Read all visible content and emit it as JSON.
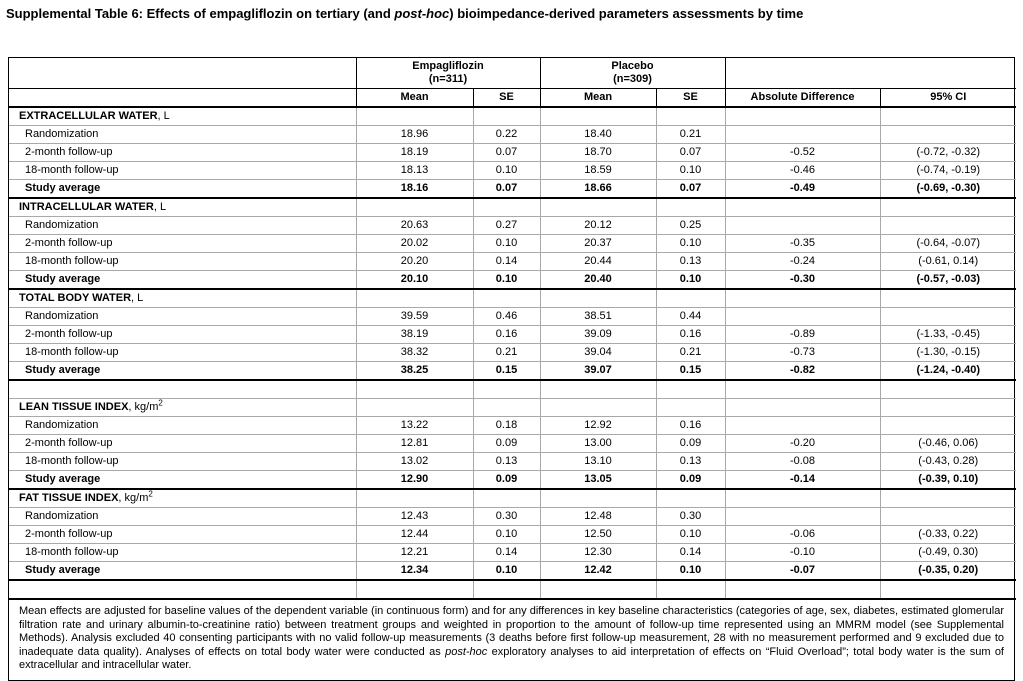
{
  "title": {
    "part1": "Supplemental Table 6: Effects of empagliflozin on tertiary (and ",
    "italic": "post-hoc",
    "part2": ") bioimpedance-derived parameters assessments by time"
  },
  "table": {
    "groups": [
      {
        "name": "Empagliflozin",
        "n": "(n=311)"
      },
      {
        "name": "Placebo",
        "n": "(n=309)"
      }
    ],
    "col_headers": [
      "Mean",
      "SE",
      "Mean",
      "SE",
      "Absolute Difference",
      "95% CI"
    ],
    "sections": [
      {
        "name": "EXTRACELLULAR WATER",
        "unit": ", L",
        "sup": "",
        "rows": [
          {
            "label": "Randomization",
            "m1": "18.96",
            "s1": "0.22",
            "m2": "18.40",
            "s2": "0.21",
            "d": "",
            "ci": ""
          },
          {
            "label": "2-month follow-up",
            "m1": "18.19",
            "s1": "0.07",
            "m2": "18.70",
            "s2": "0.07",
            "d": "-0.52",
            "ci": "(-0.72, -0.32)"
          },
          {
            "label": "18-month follow-up",
            "m1": "18.13",
            "s1": "0.10",
            "m2": "18.59",
            "s2": "0.10",
            "d": "-0.46",
            "ci": "(-0.74, -0.19)"
          },
          {
            "label": "Study average",
            "m1": "18.16",
            "s1": "0.07",
            "m2": "18.66",
            "s2": "0.07",
            "d": "-0.49",
            "ci": "(-0.69, -0.30)"
          }
        ]
      },
      {
        "name": "INTRACELLULAR WATER",
        "unit": ", L",
        "sup": "",
        "rows": [
          {
            "label": "Randomization",
            "m1": "20.63",
            "s1": "0.27",
            "m2": "20.12",
            "s2": "0.25",
            "d": "",
            "ci": ""
          },
          {
            "label": "2-month follow-up",
            "m1": "20.02",
            "s1": "0.10",
            "m2": "20.37",
            "s2": "0.10",
            "d": "-0.35",
            "ci": "(-0.64, -0.07)"
          },
          {
            "label": "18-month follow-up",
            "m1": "20.20",
            "s1": "0.14",
            "m2": "20.44",
            "s2": "0.13",
            "d": "-0.24",
            "ci": "(-0.61, 0.14)"
          },
          {
            "label": "Study average",
            "m1": "20.10",
            "s1": "0.10",
            "m2": "20.40",
            "s2": "0.10",
            "d": "-0.30",
            "ci": "(-0.57, -0.03)"
          }
        ]
      },
      {
        "name": "TOTAL BODY WATER",
        "unit": ", L",
        "sup": "",
        "rows": [
          {
            "label": "Randomization",
            "m1": "39.59",
            "s1": "0.46",
            "m2": "38.51",
            "s2": "0.44",
            "d": "",
            "ci": ""
          },
          {
            "label": "2-month follow-up",
            "m1": "38.19",
            "s1": "0.16",
            "m2": "39.09",
            "s2": "0.16",
            "d": "-0.89",
            "ci": "(-1.33, -0.45)"
          },
          {
            "label": "18-month follow-up",
            "m1": "38.32",
            "s1": "0.21",
            "m2": "39.04",
            "s2": "0.21",
            "d": "-0.73",
            "ci": "(-1.30, -0.15)"
          },
          {
            "label": "Study average",
            "m1": "38.25",
            "s1": "0.15",
            "m2": "39.07",
            "s2": "0.15",
            "d": "-0.82",
            "ci": "(-1.24, -0.40)"
          }
        ]
      },
      {
        "name": "LEAN TISSUE INDEX",
        "unit": ", kg/m",
        "sup": "2",
        "rows": [
          {
            "label": "Randomization",
            "m1": "13.22",
            "s1": "0.18",
            "m2": "12.92",
            "s2": "0.16",
            "d": "",
            "ci": ""
          },
          {
            "label": "2-month follow-up",
            "m1": "12.81",
            "s1": "0.09",
            "m2": "13.00",
            "s2": "0.09",
            "d": "-0.20",
            "ci": "(-0.46, 0.06)"
          },
          {
            "label": "18-month follow-up",
            "m1": "13.02",
            "s1": "0.13",
            "m2": "13.10",
            "s2": "0.13",
            "d": "-0.08",
            "ci": "(-0.43, 0.28)"
          },
          {
            "label": "Study average",
            "m1": "12.90",
            "s1": "0.09",
            "m2": "13.05",
            "s2": "0.09",
            "d": "-0.14",
            "ci": "(-0.39, 0.10)"
          }
        ]
      },
      {
        "name": "FAT TISSUE INDEX",
        "unit": ", kg/m",
        "sup": "2",
        "rows": [
          {
            "label": "Randomization",
            "m1": "12.43",
            "s1": "0.30",
            "m2": "12.48",
            "s2": "0.30",
            "d": "",
            "ci": ""
          },
          {
            "label": "2-month follow-up",
            "m1": "12.44",
            "s1": "0.10",
            "m2": "12.50",
            "s2": "0.10",
            "d": "-0.06",
            "ci": "(-0.33, 0.22)"
          },
          {
            "label": "18-month follow-up",
            "m1": "12.21",
            "s1": "0.14",
            "m2": "12.30",
            "s2": "0.14",
            "d": "-0.10",
            "ci": "(-0.49, 0.30)"
          },
          {
            "label": "Study average",
            "m1": "12.34",
            "s1": "0.10",
            "m2": "12.42",
            "s2": "0.10",
            "d": "-0.07",
            "ci": "(-0.35, 0.20)"
          }
        ]
      }
    ]
  },
  "footnote": {
    "part1": "Mean effects are adjusted for baseline values of the dependent variable (in continuous form) and for any differences in key baseline characteristics (categories of age, sex, diabetes, estimated glomerular filtration rate and urinary albumin-to-creatinine ratio) between treatment groups and weighted in proportion to the amount of follow-up time represented using an MMRM model (see Supplemental Methods). Analysis excluded 40 consenting participants with no valid follow-up measurements (3 deaths before first follow-up measurement, 28 with no measurement performed and 9 excluded due to inadequate data quality). Analyses of effects on total body water were conducted as ",
    "italic": "post-hoc",
    "part2": " exploratory analyses to aid interpretation of effects on “Fluid Overload”; total body water is the sum of extracellular and intracellular water."
  }
}
